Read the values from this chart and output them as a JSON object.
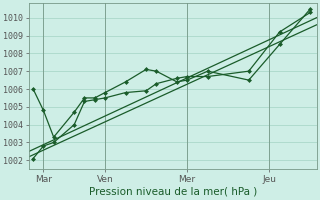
{
  "background_color": "#ceeee6",
  "grid_color": "#99ccbb",
  "line_color": "#1a5c2a",
  "ylim": [
    1001.5,
    1010.8
  ],
  "yticks": [
    1002,
    1003,
    1004,
    1005,
    1006,
    1007,
    1008,
    1009,
    1010
  ],
  "xlabel": "Pression niveau de la mer( hPa )",
  "xtick_labels": [
    "Mar",
    "Ven",
    "Mer",
    "Jeu"
  ],
  "xtick_positions": [
    0.5,
    3.5,
    7.5,
    11.5
  ],
  "xlim": [
    -0.2,
    13.8
  ],
  "series1_x": [
    0,
    0.5,
    1.0,
    2.0,
    2.5,
    3.0,
    3.5,
    4.5,
    5.5,
    6.0,
    7.0,
    7.5,
    8.5,
    10.5,
    12.0,
    13.5
  ],
  "series1_y": [
    1006.0,
    1004.8,
    1003.3,
    1004.7,
    1005.5,
    1005.5,
    1005.8,
    1006.4,
    1007.1,
    1007.0,
    1006.4,
    1006.5,
    1007.0,
    1006.5,
    1008.5,
    1010.5
  ],
  "series2_x": [
    0,
    0.5,
    1.0,
    2.0,
    2.5,
    3.0,
    3.5,
    4.5,
    5.5,
    6.0,
    7.0,
    7.5,
    8.5,
    10.5,
    12.0,
    13.5
  ],
  "series2_y": [
    1002.1,
    1002.8,
    1003.0,
    1004.0,
    1005.3,
    1005.4,
    1005.5,
    1005.8,
    1005.9,
    1006.3,
    1006.6,
    1006.7,
    1006.7,
    1007.0,
    1009.2,
    1010.3
  ],
  "trend1_x": [
    -0.2,
    13.8
  ],
  "trend1_y": [
    1002.5,
    1010.0
  ],
  "trend2_x": [
    -0.2,
    13.8
  ],
  "trend2_y": [
    1002.2,
    1009.6
  ],
  "vlines_x": [
    0.5,
    3.5,
    7.5,
    11.5
  ],
  "n_points": 16
}
